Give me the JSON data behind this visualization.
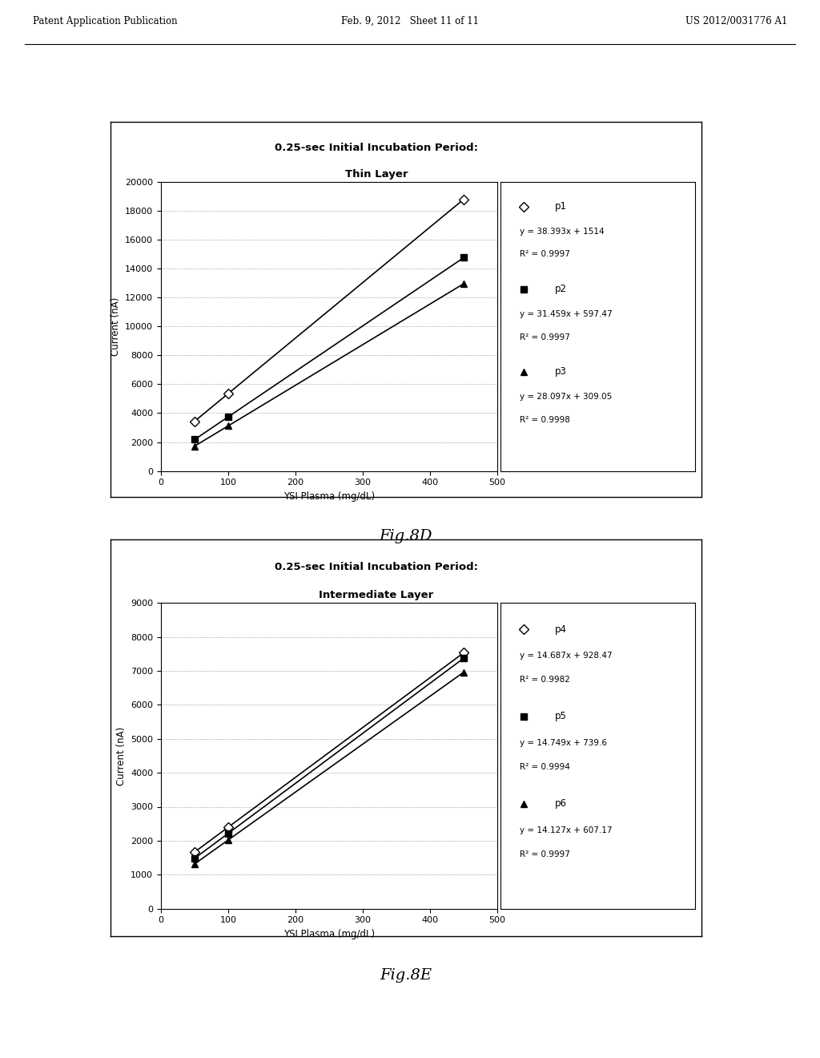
{
  "fig8d": {
    "title_line1": "0.25-sec Initial Incubation Period:",
    "title_line2": "Thin Layer",
    "xlabel": "YSI Plasma (mg/dL)",
    "ylabel": "Current (nA)",
    "xlim": [
      0,
      500
    ],
    "ylim": [
      0,
      20000
    ],
    "yticks": [
      0,
      2000,
      4000,
      6000,
      8000,
      10000,
      12000,
      14000,
      16000,
      18000,
      20000
    ],
    "xticks": [
      0,
      100,
      200,
      300,
      400,
      500
    ],
    "series": [
      {
        "label": "p1",
        "marker": "D",
        "marker_face": "white",
        "marker_edge": "black",
        "line_color": "black",
        "x": [
          50,
          100,
          450
        ],
        "slope": 38.393,
        "intercept": 1514,
        "eq": "y = 38.393x + 1514",
        "r2": "R² = 0.9997"
      },
      {
        "label": "p2",
        "marker": "s",
        "marker_face": "black",
        "marker_edge": "black",
        "line_color": "black",
        "x": [
          50,
          100,
          450
        ],
        "slope": 31.459,
        "intercept": 597.47,
        "eq": "y = 31.459x + 597.47",
        "r2": "R² = 0.9997"
      },
      {
        "label": "p3",
        "marker": "^",
        "marker_face": "black",
        "marker_edge": "black",
        "line_color": "black",
        "x": [
          50,
          100,
          450
        ],
        "slope": 28.097,
        "intercept": 309.05,
        "eq": "y = 28.097x + 309.05",
        "r2": "R² = 0.9998"
      }
    ]
  },
  "fig8e": {
    "title_line1": "0.25-sec Initial Incubation Period:",
    "title_line2": "Intermediate Layer",
    "xlabel": "YSI Plasma (mg/dL)",
    "ylabel": "Current (nA)",
    "xlim": [
      0,
      500
    ],
    "ylim": [
      0,
      9000
    ],
    "yticks": [
      0,
      1000,
      2000,
      3000,
      4000,
      5000,
      6000,
      7000,
      8000,
      9000
    ],
    "xticks": [
      0,
      100,
      200,
      300,
      400,
      500
    ],
    "series": [
      {
        "label": "p4",
        "marker": "D",
        "marker_face": "white",
        "marker_edge": "black",
        "line_color": "black",
        "x": [
          50,
          100,
          450
        ],
        "slope": 14.687,
        "intercept": 928.47,
        "eq": "y = 14.687x + 928.47",
        "r2": "R² = 0.9982"
      },
      {
        "label": "p5",
        "marker": "s",
        "marker_face": "black",
        "marker_edge": "black",
        "line_color": "black",
        "x": [
          50,
          100,
          450
        ],
        "slope": 14.749,
        "intercept": 739.6,
        "eq": "y = 14.749x + 739.6",
        "r2": "R² = 0.9994"
      },
      {
        "label": "p6",
        "marker": "^",
        "marker_face": "black",
        "marker_edge": "black",
        "line_color": "black",
        "x": [
          50,
          100,
          450
        ],
        "slope": 14.127,
        "intercept": 607.17,
        "eq": "y = 14.127x + 607.17",
        "r2": "R² = 0.9997"
      }
    ]
  },
  "header": {
    "left": "Patent Application Publication",
    "center": "Feb. 9, 2012   Sheet 11 of 11",
    "right": "US 2012/0031776 A1"
  },
  "fig_labels": [
    "Fig.8D",
    "Fig.8E"
  ],
  "background_color": "#ffffff"
}
